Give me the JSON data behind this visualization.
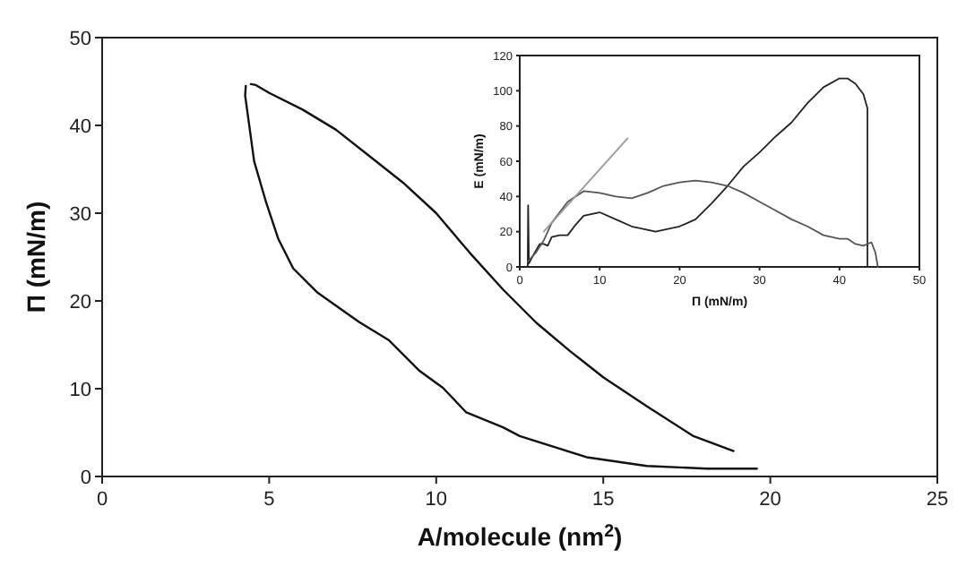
{
  "chart_data": [
    {
      "type": "line",
      "xlabel": "A/molecule (nm$^{2}$)",
      "ylabel": "Π (mN/m)",
      "xlim": [
        0,
        25
      ],
      "xticks": [
        0,
        5,
        10,
        15,
        20,
        25
      ],
      "ylim": [
        0,
        50
      ],
      "yticks": [
        0,
        10,
        20,
        30,
        40,
        50
      ],
      "grid": false,
      "marker": "none",
      "line_style": "solid",
      "series": [
        {
          "color": "#111111",
          "x": [
            18.9,
            17.7,
            16.3,
            15,
            14.5,
            14,
            13,
            12,
            11,
            10,
            9,
            8,
            7,
            6,
            5,
            4.6,
            4.45
          ],
          "values": [
            2.9,
            4.6,
            8,
            11.3,
            12.8,
            14.3,
            17.5,
            21.3,
            25.5,
            30,
            33.5,
            36.5,
            39.5,
            41.8,
            43.7,
            44.6,
            44.7
          ]
        },
        {
          "color": "#111111",
          "x": [
            4.3,
            4.28,
            4.55,
            4.91,
            5.27,
            5.72,
            6.43,
            7.69,
            8.59,
            9.48,
            10.2,
            10.9,
            12,
            12.5,
            14.5,
            16.3,
            18.1,
            19.6
          ],
          "values": [
            44.5,
            43.4,
            35.9,
            31.2,
            27.1,
            23.7,
            21,
            17.6,
            15.5,
            12.1,
            10.1,
            7.3,
            5.6,
            4.6,
            2.2,
            1.2,
            0.9,
            0.9
          ]
        }
      ]
    },
    {
      "type": "line",
      "xlabel": "Π (mN/m)",
      "ylabel": "E (mN/m)",
      "xlim": [
        0,
        50
      ],
      "xticks": [
        0,
        10,
        20,
        30,
        40,
        50
      ],
      "ylim": [
        0,
        120
      ],
      "yticks": [
        0,
        20,
        40,
        60,
        80,
        100,
        120
      ],
      "grid": false,
      "marker": "none",
      "line_style": "solid",
      "series": [
        {
          "color": "#222222",
          "x": [
            1,
            1.05,
            1.15,
            1.5,
            2,
            2.5,
            3,
            3.5,
            4,
            5,
            6,
            7,
            8,
            10,
            12,
            14,
            17,
            20,
            22,
            24,
            26,
            28,
            30,
            32,
            34,
            36,
            38,
            40,
            41,
            42,
            43,
            43.5,
            43.5
          ],
          "values": [
            0,
            35,
            2,
            5,
            9,
            13,
            13,
            12,
            17,
            18,
            18,
            24,
            29,
            31,
            27,
            23,
            20,
            23,
            27,
            36,
            46,
            57,
            65,
            74,
            82,
            93,
            102,
            107,
            107,
            104,
            98,
            90,
            0
          ]
        },
        {
          "color": "#555555",
          "x": [
            1,
            2,
            3,
            4,
            6,
            8,
            10,
            12,
            14,
            16,
            18,
            20,
            22,
            24,
            26,
            28,
            30,
            32,
            34,
            36,
            38,
            40,
            41,
            42,
            43,
            44,
            44.5,
            44.8
          ],
          "values": [
            3,
            8,
            15,
            25,
            37,
            43,
            42,
            40,
            39,
            42,
            46,
            48,
            49,
            48,
            46,
            42,
            37,
            32,
            27,
            23,
            18,
            16,
            16,
            13,
            12,
            14,
            8,
            0
          ]
        },
        {
          "color": "#999999",
          "x": [
            3,
            13.5
          ],
          "values": [
            20,
            73
          ]
        }
      ]
    }
  ]
}
